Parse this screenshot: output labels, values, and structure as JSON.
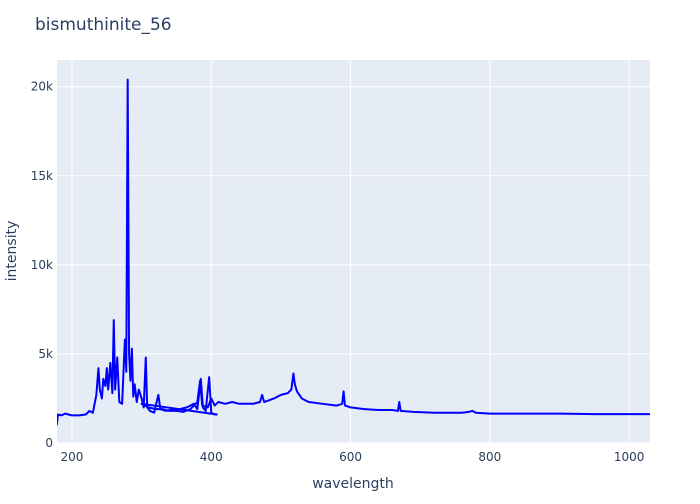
{
  "chart_data": {
    "type": "line",
    "title": "bismuthinite_56",
    "x_label": "wavelength",
    "y_label": "intensity",
    "color": "#0000ff",
    "grid": true,
    "xlim": [
      178.5,
      1030
    ],
    "ylim": [
      0,
      21500
    ],
    "xticks": [
      200,
      400,
      600,
      800,
      1000
    ],
    "yticks": [
      0,
      {
        "value": 5000,
        "label": "5k"
      },
      {
        "value": 10000,
        "label": "10k"
      },
      {
        "value": 15000,
        "label": "15k"
      },
      {
        "value": 20000,
        "label": "20k"
      }
    ],
    "x": [
      178,
      180,
      185,
      190,
      200,
      210,
      220,
      225,
      230,
      235,
      238,
      240,
      243,
      245,
      248,
      250,
      252,
      255,
      258,
      260,
      262,
      265,
      268,
      272,
      276,
      278,
      280,
      281,
      282,
      284,
      286,
      288,
      290,
      293,
      296,
      300,
      303,
      306,
      308,
      312,
      318,
      324,
      327,
      335,
      345,
      355,
      365,
      375,
      380,
      385,
      388,
      392,
      397,
      400,
      405,
      408,
      300,
      310,
      320,
      330,
      340,
      350,
      360,
      370,
      380,
      384,
      387,
      395,
      400,
      405,
      410,
      420,
      430,
      440,
      450,
      460,
      470,
      473,
      476,
      490,
      500,
      510,
      515,
      518,
      520,
      523,
      530,
      540,
      560,
      580,
      588,
      590,
      592,
      600,
      620,
      640,
      660,
      668,
      670,
      672,
      690,
      720,
      760,
      770,
      775,
      780,
      800,
      850,
      900,
      950,
      1000,
      1030
    ],
    "values": [
      1000,
      1600,
      1550,
      1650,
      1550,
      1550,
      1600,
      1800,
      1700,
      2700,
      4200,
      3000,
      2500,
      3600,
      3200,
      4200,
      3000,
      4500,
      2800,
      6900,
      3000,
      4800,
      2300,
      2200,
      5800,
      4000,
      20400,
      13000,
      5000,
      3500,
      5300,
      2600,
      3300,
      2300,
      3000,
      2500,
      2000,
      4800,
      2000,
      1800,
      1700,
      2700,
      1900,
      1800,
      1900,
      1900,
      2000,
      2200,
      1900,
      3600,
      2000,
      1800,
      3700,
      1700,
      1600,
      1600,
      2200,
      2000,
      1900,
      1900,
      1800,
      1800,
      1750,
      1900,
      2300,
      3500,
      2100,
      2000,
      2500,
      2100,
      2300,
      2200,
      2300,
      2200,
      2200,
      2200,
      2300,
      2700,
      2300,
      2500,
      2700,
      2800,
      3000,
      3900,
      3300,
      2900,
      2500,
      2300,
      2200,
      2100,
      2200,
      2900,
      2100,
      2000,
      1900,
      1850,
      1850,
      1800,
      2300,
      1800,
      1750,
      1700,
      1700,
      1750,
      1800,
      1700,
      1650,
      1650,
      1650,
      1620,
      1620,
      1620
    ]
  }
}
